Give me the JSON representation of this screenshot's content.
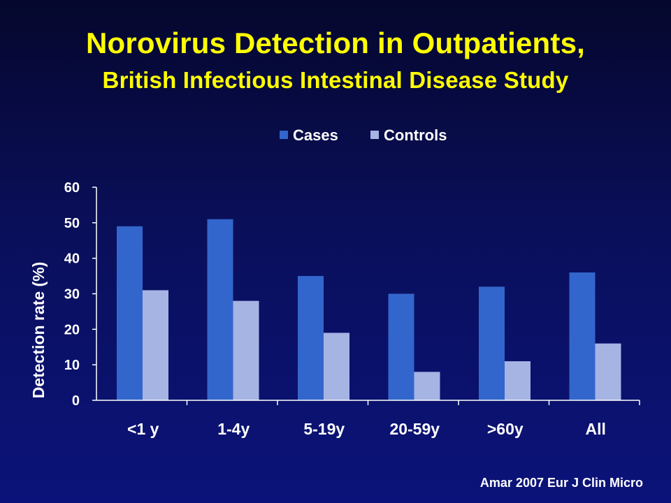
{
  "slide": {
    "title_line1": "Norovirus Detection in Outpatients,",
    "title_line2": "British Infectious Intestinal Disease Study",
    "citation": "Amar 2007 Eur J Clin Micro"
  },
  "chart_data": {
    "type": "bar",
    "categories": [
      "<1 y",
      "1-4y",
      "5-19y",
      "20-59y",
      ">60y",
      "All"
    ],
    "series": [
      {
        "name": "Cases",
        "values": [
          49,
          51,
          35,
          30,
          32,
          36
        ],
        "color": "#3366cc"
      },
      {
        "name": "Controls",
        "values": [
          31,
          28,
          19,
          8,
          11,
          16
        ],
        "color": "#a6b4e3"
      }
    ],
    "ylabel": "Detection rate (%)",
    "ylim": [
      0,
      60
    ],
    "yticks": [
      0,
      10,
      20,
      30,
      40,
      50,
      60
    ],
    "grid": false,
    "legend_position": "top"
  }
}
